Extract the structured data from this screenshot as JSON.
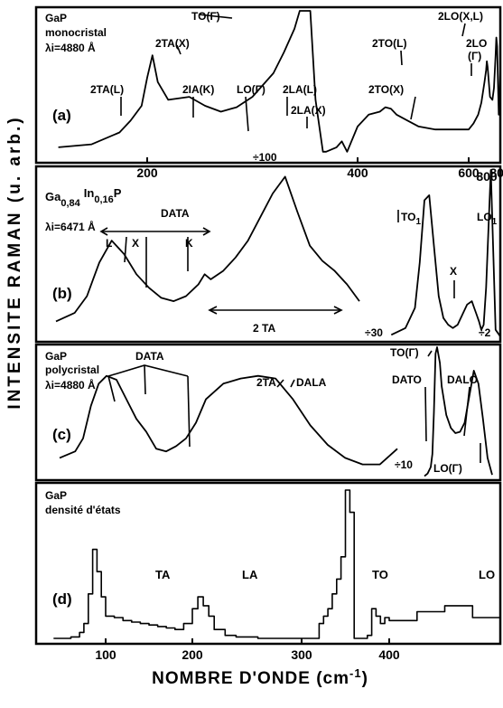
{
  "figure": {
    "ylabel": "INTENSITE  RAMAN  (u. arb.)",
    "xlabel": "NOMBRE D'ONDE (cm",
    "xlabel_sup": "-1",
    "xlabel_close": ")",
    "colors": {
      "line": "#000000",
      "background": "#ffffff"
    }
  },
  "chart_data": [
    {
      "type": "line",
      "panel": "(a)",
      "title": "GaP",
      "subtitle": "monocristal",
      "excitation": "λi=4880 Å",
      "xlim": [
        0,
        830
      ],
      "xticks": [
        200,
        400,
        600,
        800
      ],
      "xtick_labels": [
        "200",
        "400",
        "600",
        "800"
      ],
      "scale_notes": [
        "÷100"
      ],
      "annotations": [
        "TO(Γ)",
        "2TA(X)",
        "2TA(L)",
        "2IA(K)",
        "LO(Γ)",
        "2LA(L)",
        "2LA(X)",
        "2TO(X)",
        "2TO(L)",
        "2LO(X,L)",
        "2LO",
        "(Γ)"
      ],
      "series": [
        {
          "x": [
            40,
            100,
            150,
            170,
            190,
            200,
            205,
            210,
            220,
            240,
            255,
            270,
            285,
            300,
            320,
            330,
            340,
            345,
            350,
            355,
            360,
            367,
            370,
            380,
            385,
            390,
            400,
            420,
            440,
            450,
            460,
            470,
            490,
            510,
            540,
            570,
            600,
            630,
            660,
            680,
            700,
            710,
            715,
            720,
            735,
            750,
            760,
            770,
            775,
            780,
            790,
            795,
            800,
            810,
            825
          ],
          "y": [
            8,
            10,
            18,
            26,
            36,
            55,
            70,
            52,
            40,
            42,
            36,
            32,
            35,
            42,
            58,
            72,
            88,
            100,
            100,
            100,
            40,
            5,
            5,
            8,
            12,
            5,
            22,
            30,
            32,
            35,
            34,
            30,
            26,
            22,
            20,
            20,
            20,
            24,
            30,
            38,
            52,
            60,
            66,
            62,
            42,
            40,
            48,
            70,
            82,
            76,
            30,
            40,
            60,
            24,
            15
          ]
        }
      ]
    },
    {
      "type": "line",
      "panel": "(b)",
      "title": "Ga",
      "composition": [
        "0,84",
        "In",
        "0,16",
        "P"
      ],
      "excitation": "λi=6471 Å",
      "xlim": [
        0,
        830
      ],
      "xticks": [
        800
      ],
      "xtick_labels": [
        "800"
      ],
      "scale_notes": [
        "÷30",
        "÷2"
      ],
      "annotations": [
        "DATA",
        "L",
        "X",
        "K",
        "2 TA",
        "TO",
        "1",
        "X",
        "LO",
        "1"
      ],
      "series": [
        {
          "x": [
            30,
            60,
            80,
            90,
            100,
            120,
            140,
            160,
            180,
            200,
            220,
            240,
            260,
            270,
            280,
            300,
            320,
            340,
            360,
            380,
            400,
            420,
            440,
            460,
            480,
            500,
            520
          ],
          "y": [
            10,
            15,
            25,
            35,
            45,
            58,
            50,
            38,
            30,
            24,
            22,
            25,
            32,
            38,
            35,
            40,
            48,
            58,
            72,
            86,
            96,
            75,
            55,
            46,
            40,
            32,
            22
          ]
        },
        {
          "x": [
            570,
            600,
            620,
            630,
            640,
            650,
            660,
            670,
            680,
            690,
            700,
            710,
            720,
            730,
            740,
            745,
            750,
            755,
            760,
            765,
            770,
            780,
            790,
            800
          ],
          "y": [
            2,
            6,
            18,
            45,
            82,
            85,
            55,
            25,
            12,
            8,
            6,
            8,
            14,
            20,
            22,
            18,
            14,
            10,
            5,
            8,
            30,
            100,
            5,
            1
          ]
        }
      ]
    },
    {
      "type": "line",
      "panel": "(c)",
      "title": "GaP",
      "subtitle": "polycristal",
      "excitation": "λi=4880 Å",
      "xlim": [
        0,
        420
      ],
      "scale_notes": [
        "÷10"
      ],
      "annotations": [
        "DATA",
        "2TA",
        "DALA",
        "TO(Γ)",
        "DATO",
        "DALO",
        "LO(Γ)"
      ],
      "series": [
        {
          "x": [
            40,
            60,
            70,
            80,
            90,
            100,
            110,
            120,
            130,
            140,
            150,
            160,
            170,
            180,
            190,
            200,
            210,
            220,
            230,
            240,
            250,
            260,
            270,
            280,
            290,
            300,
            310
          ],
          "y": [
            15,
            20,
            30,
            55,
            72,
            78,
            75,
            60,
            45,
            35,
            22,
            20,
            24,
            30,
            42,
            60,
            72,
            76,
            78,
            76,
            60,
            40,
            25,
            15,
            10,
            10,
            22
          ]
        },
        {
          "x": [
            320,
            330,
            340,
            345,
            350,
            355,
            360,
            363,
            365,
            370,
            375,
            380,
            385,
            390,
            395,
            400,
            405,
            410,
            415,
            420
          ],
          "y": [
            1,
            3,
            8,
            18,
            50,
            95,
            100,
            88,
            70,
            48,
            38,
            34,
            35,
            42,
            62,
            82,
            72,
            45,
            15,
            2
          ]
        }
      ]
    },
    {
      "type": "line",
      "panel": "(d)",
      "title": "GaP",
      "subtitle": "densité d'états",
      "xlim": [
        20,
        420
      ],
      "xticks": [
        100,
        200,
        300,
        400
      ],
      "xtick_labels": [
        "100",
        "200",
        "300",
        "400"
      ],
      "annotations": [
        "TA",
        "LA",
        "TO",
        "LO"
      ],
      "series": [
        {
          "x": [
            40,
            60,
            70,
            75,
            80,
            85,
            90,
            95,
            100,
            110,
            120,
            130,
            140,
            150,
            160,
            170,
            180,
            190,
            200,
            205,
            210,
            215,
            220,
            230,
            240,
            260,
            280,
            300,
            320,
            325,
            330,
            335,
            340,
            345,
            350,
            355,
            360,
            365,
            370,
            375,
            380,
            385,
            390,
            395,
            400,
            405,
            410,
            415,
            420
          ],
          "y": [
            0,
            1,
            4,
            10,
            30,
            60,
            45,
            28,
            15,
            14,
            12,
            11,
            10,
            9,
            8,
            7,
            6,
            10,
            20,
            28,
            22,
            15,
            6,
            2,
            1,
            0,
            0,
            0,
            10,
            15,
            20,
            30,
            40,
            55,
            100,
            85,
            0,
            0,
            0,
            2,
            20,
            15,
            10,
            14,
            12,
            18,
            22,
            14,
            5
          ]
        }
      ]
    }
  ]
}
